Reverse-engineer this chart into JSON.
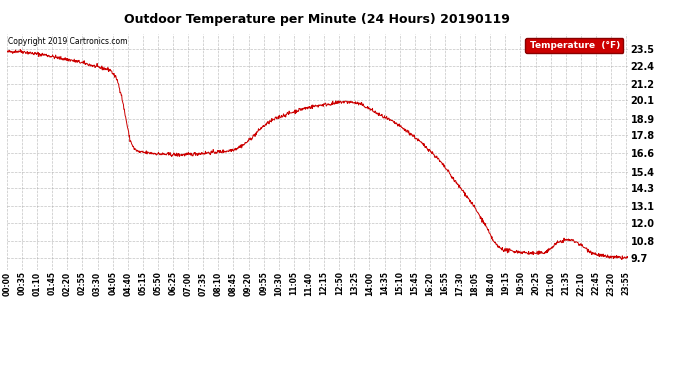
{
  "title": "Outdoor Temperature per Minute (24 Hours) 20190119",
  "copyright_text": "Copyright 2019 Cartronics.com",
  "legend_label": "Temperature  (°F)",
  "line_color": "#cc0000",
  "background_color": "#ffffff",
  "grid_color": "#aaaaaa",
  "yticks": [
    9.7,
    10.8,
    12.0,
    13.1,
    14.3,
    15.4,
    16.6,
    17.8,
    18.9,
    20.1,
    21.2,
    22.4,
    23.5
  ],
  "ylim": [
    8.9,
    24.5
  ],
  "xtick_labels": [
    "00:00",
    "00:35",
    "01:10",
    "01:45",
    "02:20",
    "02:55",
    "03:30",
    "04:05",
    "04:40",
    "05:15",
    "05:50",
    "06:25",
    "07:00",
    "07:35",
    "08:10",
    "08:45",
    "09:20",
    "09:55",
    "10:30",
    "11:05",
    "11:40",
    "12:15",
    "12:50",
    "13:25",
    "14:00",
    "14:35",
    "15:10",
    "15:45",
    "16:20",
    "16:55",
    "17:30",
    "18:05",
    "18:40",
    "19:15",
    "19:50",
    "20:25",
    "21:00",
    "21:35",
    "22:10",
    "22:45",
    "23:20",
    "23:55"
  ],
  "curve_key_points": [
    [
      0,
      23.3
    ],
    [
      30,
      23.35
    ],
    [
      60,
      23.2
    ],
    [
      90,
      23.1
    ],
    [
      120,
      22.9
    ],
    [
      150,
      22.75
    ],
    [
      180,
      22.55
    ],
    [
      210,
      22.3
    ],
    [
      240,
      22.1
    ],
    [
      255,
      21.5
    ],
    [
      265,
      20.5
    ],
    [
      275,
      19.0
    ],
    [
      285,
      17.5
    ],
    [
      295,
      16.9
    ],
    [
      305,
      16.7
    ],
    [
      320,
      16.65
    ],
    [
      360,
      16.55
    ],
    [
      400,
      16.5
    ],
    [
      430,
      16.55
    ],
    [
      450,
      16.6
    ],
    [
      470,
      16.65
    ],
    [
      490,
      16.7
    ],
    [
      510,
      16.75
    ],
    [
      530,
      16.9
    ],
    [
      550,
      17.2
    ],
    [
      570,
      17.7
    ],
    [
      590,
      18.3
    ],
    [
      610,
      18.7
    ],
    [
      630,
      19.0
    ],
    [
      650,
      19.2
    ],
    [
      665,
      19.35
    ],
    [
      680,
      19.5
    ],
    [
      695,
      19.6
    ],
    [
      710,
      19.7
    ],
    [
      720,
      19.75
    ],
    [
      730,
      19.8
    ],
    [
      745,
      19.85
    ],
    [
      760,
      19.9
    ],
    [
      775,
      20.0
    ],
    [
      790,
      20.0
    ],
    [
      805,
      19.95
    ],
    [
      820,
      19.85
    ],
    [
      840,
      19.55
    ],
    [
      860,
      19.2
    ],
    [
      880,
      18.9
    ],
    [
      900,
      18.6
    ],
    [
      920,
      18.2
    ],
    [
      940,
      17.8
    ],
    [
      960,
      17.3
    ],
    [
      980,
      16.8
    ],
    [
      1000,
      16.2
    ],
    [
      1020,
      15.5
    ],
    [
      1040,
      14.7
    ],
    [
      1060,
      14.0
    ],
    [
      1080,
      13.2
    ],
    [
      1095,
      12.5
    ],
    [
      1110,
      11.8
    ],
    [
      1120,
      11.2
    ],
    [
      1130,
      10.7
    ],
    [
      1140,
      10.4
    ],
    [
      1155,
      10.2
    ],
    [
      1170,
      10.15
    ],
    [
      1185,
      10.1
    ],
    [
      1200,
      10.05
    ],
    [
      1215,
      10.0
    ],
    [
      1230,
      10.0
    ],
    [
      1245,
      10.05
    ],
    [
      1260,
      10.3
    ],
    [
      1270,
      10.6
    ],
    [
      1280,
      10.75
    ],
    [
      1290,
      10.85
    ],
    [
      1300,
      10.9
    ],
    [
      1310,
      10.85
    ],
    [
      1320,
      10.75
    ],
    [
      1330,
      10.55
    ],
    [
      1340,
      10.35
    ],
    [
      1350,
      10.15
    ],
    [
      1360,
      10.0
    ],
    [
      1370,
      9.9
    ],
    [
      1385,
      9.8
    ],
    [
      1400,
      9.75
    ],
    [
      1415,
      9.72
    ],
    [
      1439,
      9.7
    ]
  ]
}
